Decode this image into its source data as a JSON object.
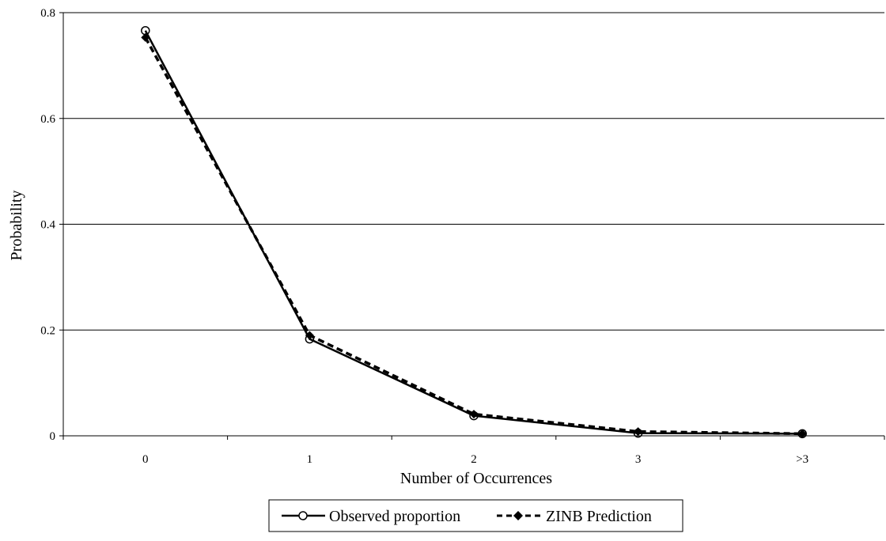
{
  "chart_data": {
    "type": "line",
    "title": "",
    "xlabel": "Number of Occurrences",
    "ylabel": "Probability",
    "categories": [
      "0",
      "1",
      "2",
      "3",
      ">3"
    ],
    "ylim": [
      0,
      0.8
    ],
    "yticks": [
      "0",
      "0.2",
      "0.4",
      "0.6",
      "0.8"
    ],
    "grid": "horizontal",
    "legend_position": "bottom",
    "series": [
      {
        "name": "Observed proportion",
        "values": [
          0.766,
          0.183,
          0.038,
          0.005,
          0.004
        ],
        "line_style": "solid",
        "marker": "open-circle",
        "color": "#000000"
      },
      {
        "name": "ZINB Prediction",
        "values": [
          0.753,
          0.19,
          0.041,
          0.008,
          0.004
        ],
        "line_style": "dashed",
        "marker": "filled-diamond",
        "color": "#000000"
      }
    ]
  }
}
